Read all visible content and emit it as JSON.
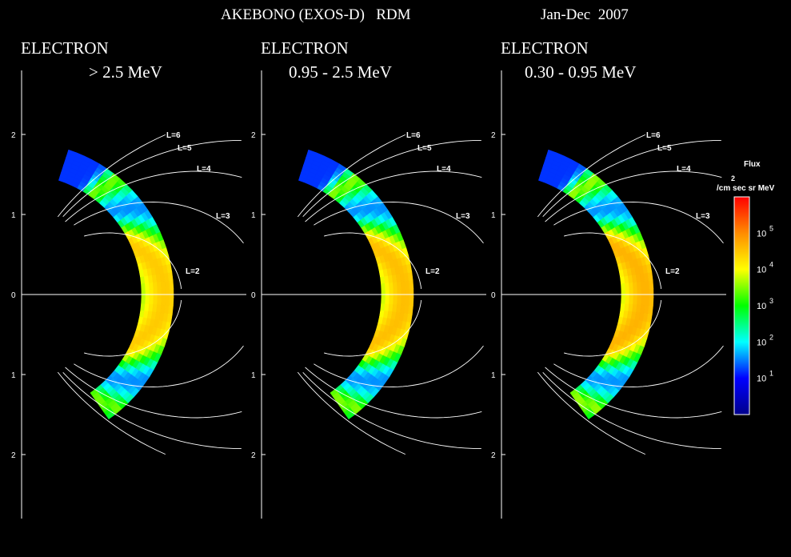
{
  "header": {
    "instrument": "AKEBONO (EXOS-D)   RDM",
    "period": "Jan-Dec  2007"
  },
  "chart_data": [
    {
      "type": "heatmap",
      "title": "ELECTRON",
      "subtitle": "> 2.5 MeV",
      "ytick_labels": [
        "2",
        "1",
        "0",
        "1",
        "2"
      ],
      "ytick_values": [
        2,
        1,
        0,
        -1,
        -2
      ],
      "ylim": [
        -2.8,
        2.8
      ],
      "l_shell_labels": [
        "L=6",
        "L=5",
        "L=4",
        "L=3",
        "L=2"
      ],
      "peak_log_flux": 4.45
    },
    {
      "type": "heatmap",
      "title": "ELECTRON",
      "subtitle": "0.95 - 2.5 MeV",
      "ytick_labels": [
        "2",
        "1",
        "0",
        "1",
        "2"
      ],
      "ytick_values": [
        2,
        1,
        0,
        -1,
        -2
      ],
      "ylim": [
        -2.8,
        2.8
      ],
      "l_shell_labels": [
        "L=6",
        "L=5",
        "L=4",
        "L=3",
        "L=2"
      ],
      "peak_log_flux": 4.55
    },
    {
      "type": "heatmap",
      "title": "ELECTRON",
      "subtitle": "0.30 - 0.95 MeV",
      "ytick_labels": [
        "2",
        "1",
        "0",
        "1",
        "2"
      ],
      "ytick_values": [
        2,
        1,
        0,
        -1,
        -2
      ],
      "ylim": [
        -2.8,
        2.8
      ],
      "l_shell_labels": [
        "L=6",
        "L=5",
        "L=4",
        "L=3",
        "L=2"
      ],
      "peak_log_flux": 4.65
    }
  ],
  "colorbar": {
    "title": "Flux",
    "unit_exponent": "2",
    "unit": "/cm sec sr MeV",
    "colormap": [
      "#00008b",
      "#0000ff",
      "#00ffff",
      "#00ff00",
      "#ffff00",
      "#ff8c00",
      "#ff0000"
    ],
    "tick_labels": [
      {
        "base": "10",
        "exp": "1",
        "value": 1
      },
      {
        "base": "10",
        "exp": "2",
        "value": 2
      },
      {
        "base": "10",
        "exp": "3",
        "value": 3
      },
      {
        "base": "10",
        "exp": "4",
        "value": 4
      },
      {
        "base": "10",
        "exp": "5",
        "value": 5
      }
    ],
    "range": [
      0,
      6
    ]
  }
}
